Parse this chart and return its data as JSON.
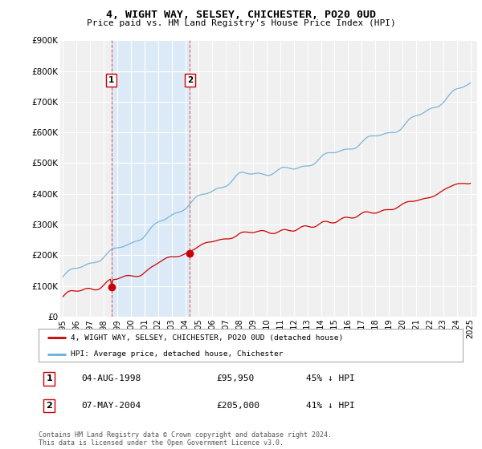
{
  "title": "4, WIGHT WAY, SELSEY, CHICHESTER, PO20 0UD",
  "subtitle": "Price paid vs. HM Land Registry's House Price Index (HPI)",
  "legend_entry1": "4, WIGHT WAY, SELSEY, CHICHESTER, PO20 0UD (detached house)",
  "legend_entry2": "HPI: Average price, detached house, Chichester",
  "transaction1_date": "04-AUG-1998",
  "transaction1_price": "£95,950",
  "transaction1_hpi": "45% ↓ HPI",
  "transaction2_date": "07-MAY-2004",
  "transaction2_price": "£205,000",
  "transaction2_hpi": "41% ↓ HPI",
  "footnote": "Contains HM Land Registry data © Crown copyright and database right 2024.\nThis data is licensed under the Open Government Licence v3.0.",
  "hpi_color": "#6baed6",
  "price_color": "#cc0000",
  "marker1_date_x": 1998.58,
  "marker1_y": 95950,
  "marker2_date_x": 2004.35,
  "marker2_y": 205000,
  "ylim": [
    0,
    900000
  ],
  "xlim_start": 1994.8,
  "xlim_end": 2025.5,
  "yticks": [
    0,
    100000,
    200000,
    300000,
    400000,
    500000,
    600000,
    700000,
    800000,
    900000
  ],
  "xtick_years": [
    1995,
    1996,
    1997,
    1998,
    1999,
    2000,
    2001,
    2002,
    2003,
    2004,
    2005,
    2006,
    2007,
    2008,
    2009,
    2010,
    2011,
    2012,
    2013,
    2014,
    2015,
    2016,
    2017,
    2018,
    2019,
    2020,
    2021,
    2022,
    2023,
    2024,
    2025
  ],
  "background_color": "#ffffff",
  "plot_bg_color": "#f0f0f0",
  "grid_color": "#ffffff",
  "shaded_region_color": "#dceaf7"
}
